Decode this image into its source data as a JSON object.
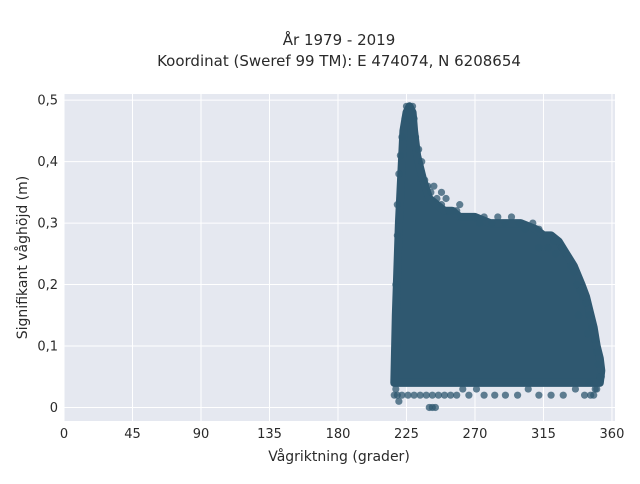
{
  "chart_data": {
    "type": "scatter",
    "title_line1": "År 1979 - 2019",
    "title_line2": "Koordinat (Sweref 99 TM): E 474074, N 6208654",
    "xlabel": "Vågriktning (grader)",
    "ylabel": "Signifikant våghöjd (m)",
    "xlim": [
      0,
      362
    ],
    "ylim": [
      -0.022,
      0.51
    ],
    "x_ticks": [
      {
        "value": 0,
        "label": "0"
      },
      {
        "value": 45,
        "label": "45"
      },
      {
        "value": 90,
        "label": "90"
      },
      {
        "value": 135,
        "label": "135"
      },
      {
        "value": 180,
        "label": "180"
      },
      {
        "value": 225,
        "label": "225"
      },
      {
        "value": 270,
        "label": "270"
      },
      {
        "value": 315,
        "label": "315"
      },
      {
        "value": 360,
        "label": "360"
      }
    ],
    "y_ticks": [
      {
        "value": 0,
        "label": "0"
      },
      {
        "value": 0.1,
        "label": "0,1"
      },
      {
        "value": 0.2,
        "label": "0,2"
      },
      {
        "value": 0.3,
        "label": "0,3"
      },
      {
        "value": 0.4,
        "label": "0,4"
      },
      {
        "value": 0.5,
        "label": "0,5"
      }
    ],
    "grid": true,
    "background_color": "#e5e8f0",
    "grid_color": "#ffffff",
    "marker_color": "#2f5870",
    "marker_opacity": 0.75,
    "envelope": {
      "x": [
        217,
        218,
        220,
        222,
        223,
        225,
        227,
        229,
        230,
        232,
        236,
        240,
        245,
        250,
        255,
        260,
        270,
        280,
        290,
        300,
        310,
        315,
        320,
        325,
        330,
        335,
        340,
        343,
        345,
        348,
        350,
        352,
        353,
        352,
        350,
        345,
        340,
        330,
        320,
        310,
        300,
        290,
        280,
        270,
        260,
        250,
        245,
        240,
        235,
        232,
        228,
        225,
        222,
        220,
        218,
        217
      ],
      "y": [
        0.04,
        0.15,
        0.3,
        0.4,
        0.45,
        0.48,
        0.49,
        0.48,
        0.45,
        0.41,
        0.37,
        0.34,
        0.33,
        0.32,
        0.32,
        0.31,
        0.31,
        0.3,
        0.3,
        0.3,
        0.29,
        0.28,
        0.28,
        0.27,
        0.25,
        0.23,
        0.2,
        0.18,
        0.16,
        0.13,
        0.1,
        0.08,
        0.06,
        0.04,
        0.04,
        0.04,
        0.04,
        0.04,
        0.04,
        0.04,
        0.04,
        0.04,
        0.04,
        0.04,
        0.04,
        0.04,
        0.04,
        0.04,
        0.04,
        0.04,
        0.04,
        0.04,
        0.04,
        0.04,
        0.04,
        0.04
      ]
    },
    "points": [
      [
        225,
        0.49
      ],
      [
        227,
        0.49
      ],
      [
        229,
        0.49
      ],
      [
        224,
        0.47
      ],
      [
        230,
        0.47
      ],
      [
        222,
        0.44
      ],
      [
        231,
        0.44
      ],
      [
        221,
        0.41
      ],
      [
        233,
        0.42
      ],
      [
        220,
        0.38
      ],
      [
        235,
        0.4
      ],
      [
        219,
        0.33
      ],
      [
        237,
        0.37
      ],
      [
        239,
        0.36
      ],
      [
        241,
        0.35
      ],
      [
        243,
        0.36
      ],
      [
        245,
        0.34
      ],
      [
        248,
        0.33
      ],
      [
        251,
        0.34
      ],
      [
        253,
        0.32
      ],
      [
        256,
        0.32
      ],
      [
        258,
        0.32
      ],
      [
        261,
        0.31
      ],
      [
        264,
        0.31
      ],
      [
        267,
        0.31
      ],
      [
        270,
        0.31
      ],
      [
        273,
        0.3
      ],
      [
        276,
        0.31
      ],
      [
        281,
        0.3
      ],
      [
        285,
        0.31
      ],
      [
        290,
        0.3
      ],
      [
        294,
        0.31
      ],
      [
        299,
        0.3
      ],
      [
        303,
        0.29
      ],
      [
        308,
        0.3
      ],
      [
        312,
        0.29
      ],
      [
        316,
        0.28
      ],
      [
        320,
        0.28
      ],
      [
        322,
        0.27
      ],
      [
        325,
        0.27
      ],
      [
        327,
        0.26
      ],
      [
        330,
        0.25
      ],
      [
        333,
        0.23
      ],
      [
        335,
        0.22
      ],
      [
        337,
        0.2
      ],
      [
        339,
        0.19
      ],
      [
        341,
        0.18
      ],
      [
        343,
        0.17
      ],
      [
        345,
        0.15
      ],
      [
        347,
        0.13
      ],
      [
        349,
        0.11
      ],
      [
        350,
        0.09
      ],
      [
        351,
        0.07
      ],
      [
        352,
        0.05
      ],
      [
        350,
        0.03
      ],
      [
        348,
        0.02
      ],
      [
        346,
        0.02
      ],
      [
        218,
        0.03
      ],
      [
        217,
        0.02
      ],
      [
        219,
        0.02
      ],
      [
        220,
        0.01
      ],
      [
        222,
        0.02
      ],
      [
        226,
        0.02
      ],
      [
        230,
        0.02
      ],
      [
        234,
        0.02
      ],
      [
        238,
        0.02
      ],
      [
        242,
        0.02
      ],
      [
        246,
        0.02
      ],
      [
        250,
        0.02
      ],
      [
        254,
        0.02
      ],
      [
        240,
        0.0
      ],
      [
        242,
        0.0
      ],
      [
        244,
        0.0
      ],
      [
        258,
        0.02
      ],
      [
        262,
        0.03
      ],
      [
        266,
        0.02
      ],
      [
        271,
        0.03
      ],
      [
        276,
        0.02
      ],
      [
        283,
        0.02
      ],
      [
        290,
        0.02
      ],
      [
        298,
        0.02
      ],
      [
        305,
        0.03
      ],
      [
        312,
        0.02
      ],
      [
        320,
        0.02
      ],
      [
        328,
        0.02
      ],
      [
        336,
        0.03
      ],
      [
        342,
        0.02
      ],
      [
        349,
        0.03
      ],
      [
        353,
        0.05
      ],
      [
        345,
        0.04
      ],
      [
        219,
        0.1
      ],
      [
        218,
        0.2
      ],
      [
        219,
        0.28
      ],
      [
        260,
        0.33
      ],
      [
        248,
        0.35
      ],
      [
        312,
        0.26
      ],
      [
        318,
        0.26
      ],
      [
        323,
        0.25
      ],
      [
        338,
        0.15
      ],
      [
        344,
        0.12
      ]
    ]
  }
}
